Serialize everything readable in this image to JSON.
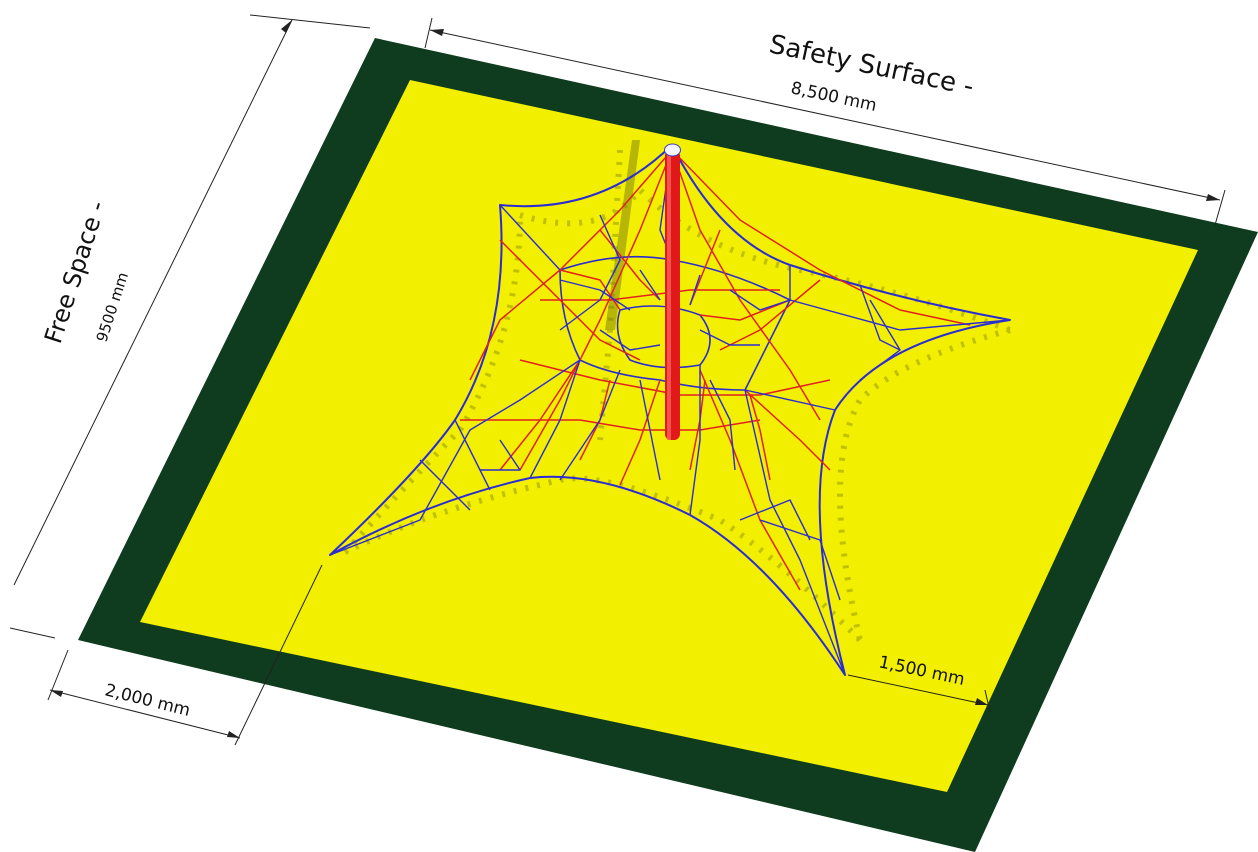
{
  "labels": {
    "safety_surface": "Safety Surface -",
    "safety_width": "8,500 mm",
    "free_space": "Free Space -",
    "free_space_length": "9500 mm",
    "offset_left": "2,000 mm",
    "offset_right": "1,500 mm"
  },
  "colors": {
    "surface_fill": "#f2f000",
    "border_fill": "#0f3b1f",
    "net_blue": "#2b2bd6",
    "net_red": "#e22020",
    "pole_red": "#e01818",
    "shadow": "#8a8a00"
  }
}
